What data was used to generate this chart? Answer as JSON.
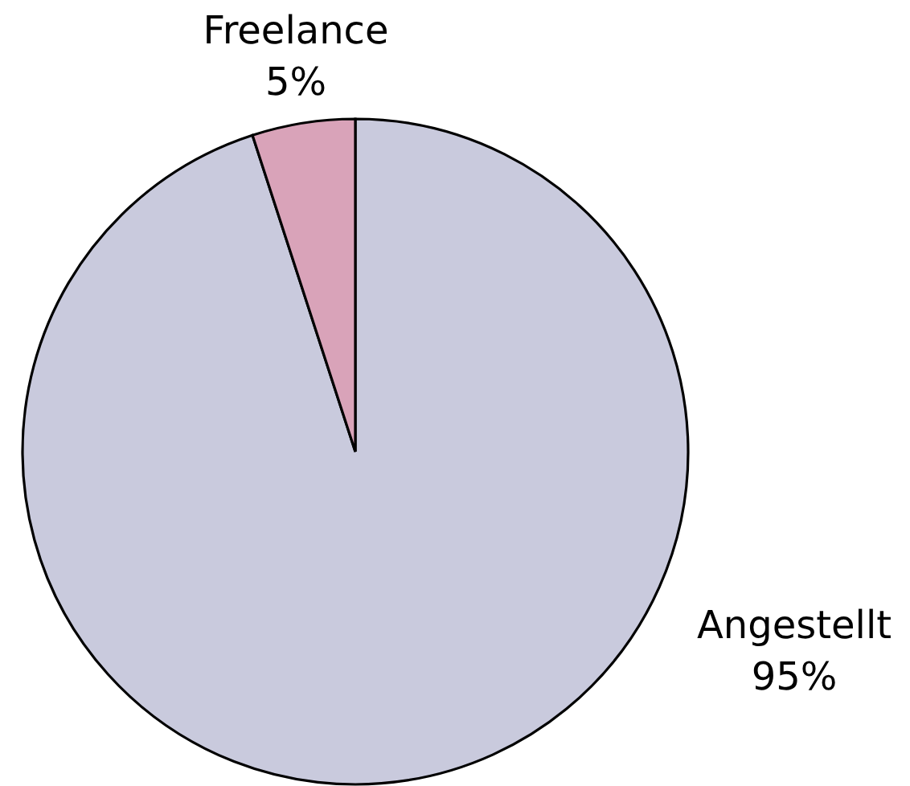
{
  "chart_data": {
    "type": "pie",
    "categories": [
      "Angestellt",
      "Freelance"
    ],
    "values": [
      95,
      5
    ],
    "colors": [
      "#c9cadd",
      "#d9a3b9"
    ],
    "value_labels": [
      "95%",
      "5%"
    ]
  }
}
